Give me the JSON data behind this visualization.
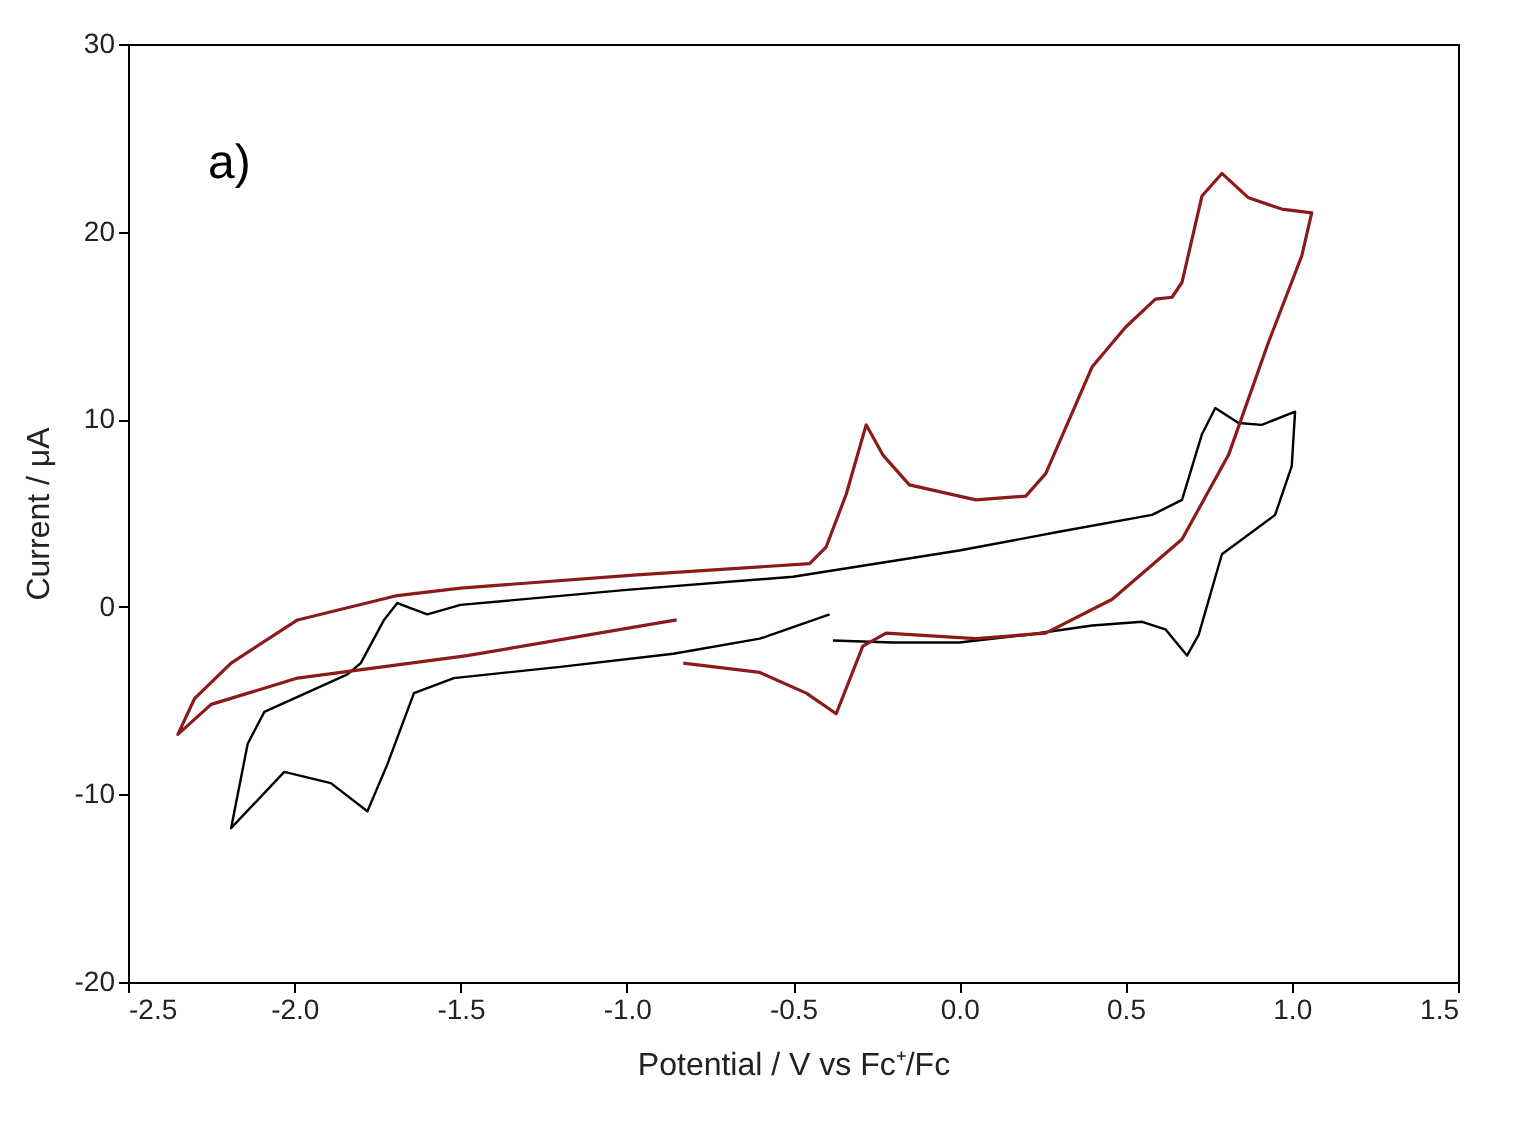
{
  "chart_data": {
    "type": "line",
    "xlabel": "Potential / V vs Fc⁺/Fc",
    "ylabel": "Current / μA",
    "annotations": [
      "a)"
    ],
    "xlim": [
      -2.5,
      1.5
    ],
    "xticks": [
      {
        "value": -2.5,
        "label": "-2.5"
      },
      {
        "value": -2,
        "label": "-2.0"
      },
      {
        "value": -1.5,
        "label": "-1.5"
      },
      {
        "value": -1,
        "label": "-1.0"
      },
      {
        "value": -0.5,
        "label": "-0.5"
      },
      {
        "value": 0,
        "label": "0.0"
      },
      {
        "value": 0.5,
        "label": "0.5"
      },
      {
        "value": 1,
        "label": "1.0"
      },
      {
        "value": 1.5,
        "label": "1.5"
      }
    ],
    "ylim": [
      -20,
      30
    ],
    "yticks": [
      {
        "value": -20,
        "label": "-20"
      },
      {
        "value": -10,
        "label": "-10"
      },
      {
        "value": 0,
        "label": "0"
      },
      {
        "value": 10,
        "label": "10"
      },
      {
        "value": 20,
        "label": "20"
      },
      {
        "value": 30,
        "label": "30"
      }
    ],
    "grid": false,
    "marker": "none",
    "line_style": "solid",
    "series": [
      {
        "color": "#000000",
        "x": [
          -0.38,
          -0.2,
          0.0,
          0.2,
          0.4,
          0.55,
          0.62,
          0.685,
          0.72,
          0.79,
          0.95,
          1.0,
          1.01,
          0.91,
          0.84,
          0.77,
          0.73,
          0.67,
          0.58,
          0.3,
          0.0,
          -0.5,
          -1.0,
          -1.5,
          -1.6,
          -1.69,
          -1.73,
          -1.8,
          -1.84,
          -2.09,
          -2.14,
          -2.19,
          -2.03,
          -1.89,
          -1.78,
          -1.72,
          -1.64,
          -1.52,
          -1.2,
          -0.86,
          -0.6,
          -0.39
        ],
        "values": [
          -1.8,
          -1.9,
          -1.9,
          -1.5,
          -1.0,
          -0.8,
          -1.2,
          -2.6,
          -1.5,
          2.8,
          4.9,
          7.5,
          10.4,
          9.7,
          9.8,
          10.6,
          9.2,
          5.7,
          4.9,
          4.0,
          3.0,
          1.6,
          0.9,
          0.1,
          -0.4,
          0.2,
          -0.7,
          -3.0,
          -3.6,
          -5.6,
          -7.3,
          -11.8,
          -8.8,
          -9.4,
          -10.9,
          -8.4,
          -4.6,
          -3.8,
          -3.2,
          -2.5,
          -1.7,
          -0.4
        ]
      },
      {
        "color": "#8b1a1a",
        "x": [
          -0.83,
          -0.6,
          -0.46,
          -0.37,
          -0.29,
          -0.22,
          0.05,
          0.26,
          0.46,
          0.67,
          0.81,
          0.93,
          1.03,
          1.06,
          0.97,
          0.87,
          0.79,
          0.73,
          0.67,
          0.64,
          0.59,
          0.5,
          0.4,
          0.26,
          0.2,
          0.05,
          -0.15,
          -0.23,
          -0.28,
          -0.34,
          -0.4,
          -0.45,
          -0.97,
          -1.5,
          -1.69,
          -1.99,
          -2.19,
          -2.3,
          -2.35,
          -2.25,
          -1.99,
          -1.48,
          -0.85
        ],
        "values": [
          -3.0,
          -3.5,
          -4.6,
          -5.7,
          -2.1,
          -1.4,
          -1.7,
          -1.4,
          0.4,
          3.6,
          8.1,
          14.1,
          18.7,
          21.0,
          21.2,
          21.8,
          23.1,
          21.9,
          17.3,
          16.5,
          16.4,
          14.9,
          12.8,
          7.1,
          5.9,
          5.7,
          6.5,
          8.1,
          9.7,
          6.0,
          3.2,
          2.3,
          1.7,
          1.0,
          0.6,
          -0.7,
          -3.0,
          -4.9,
          -6.8,
          -5.2,
          -3.8,
          -2.6,
          -0.7
        ]
      }
    ]
  }
}
